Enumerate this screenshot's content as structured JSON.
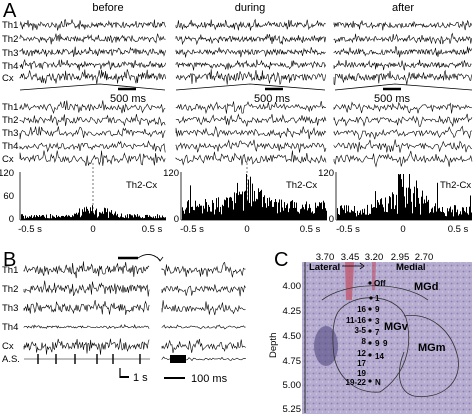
{
  "panel_a": {
    "letter": "A",
    "conditions": [
      "before",
      "during",
      "after"
    ],
    "channels": [
      "Th1",
      "Th2",
      "Th3",
      "Th4",
      "Cx"
    ],
    "scale_500": "500 ms",
    "hist_label": "Th2-Cx",
    "y_ticks": [
      "120",
      "60",
      "0"
    ],
    "x_ticks": [
      "-0.5 s",
      "0",
      "0.5 s"
    ]
  },
  "panel_b": {
    "letter": "B",
    "channels": [
      "Th1",
      "Th2",
      "Th3",
      "Th4",
      "Cx",
      "A.S."
    ],
    "scale_1s": "1 s",
    "scale_100ms": "100 ms"
  },
  "panel_c": {
    "letter": "C",
    "top_ticks": [
      "3.70",
      "3.45",
      "3.20",
      "2.95",
      "2.70"
    ],
    "lateral": "Lateral",
    "medial": "Medial",
    "depth_ticks": [
      "4.00",
      "4.25",
      "4.50",
      "4.75",
      "5.00",
      "5.25"
    ],
    "depth_label": "Depth",
    "regions": [
      "MGd",
      "MGv",
      "MGm"
    ],
    "site_labels": [
      "Off",
      "16",
      "1",
      "11-16",
      "9",
      "3-5",
      "3",
      "8",
      "7",
      "9",
      "12",
      "9",
      "17",
      "14",
      "19",
      "19-22",
      "N"
    ]
  }
}
